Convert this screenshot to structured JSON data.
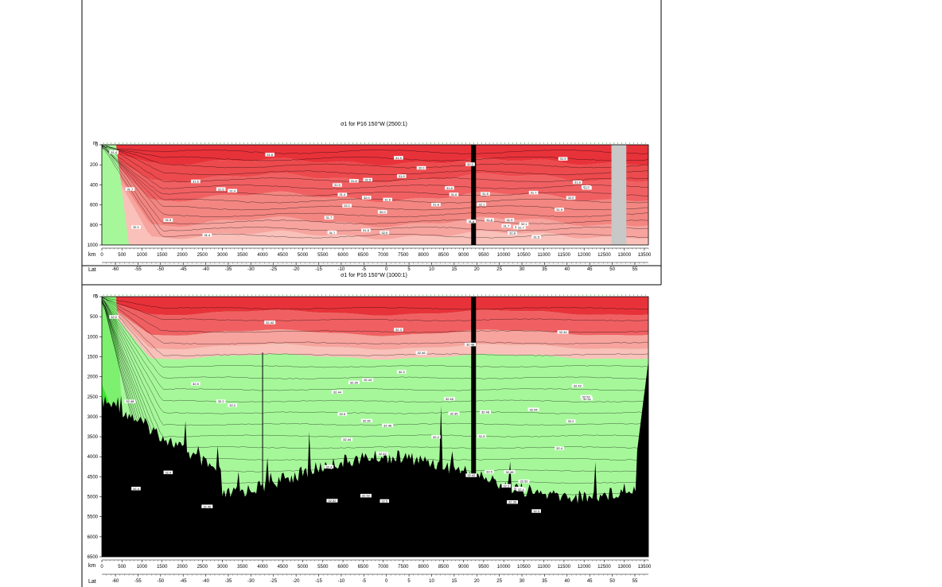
{
  "colors": {
    "red_deep": "#e8323a",
    "red_mid": "#f06062",
    "red_light": "#f7a39e",
    "pink": "#f9c1ba",
    "green_light": "#a6f79a",
    "green_mid": "#7ef070",
    "green_bright": "#3ee832",
    "bottom": "#000000",
    "no_data": "#c8c8c8"
  },
  "chart_data": [
    {
      "type": "heatmap",
      "panel": "upper",
      "title": "σ1 for P16 150°W (2500:1)",
      "ylabel": "m",
      "xlabel": "km",
      "x2label": "Lat",
      "ylim": [
        1000,
        0
      ],
      "xlim": [
        0,
        13600
      ],
      "yticks": [
        0,
        200,
        400,
        600,
        800,
        1000
      ],
      "xticks": [
        0,
        500,
        1000,
        1500,
        2000,
        2500,
        3000,
        3500,
        4000,
        4500,
        5000,
        5500,
        6000,
        6500,
        7000,
        7500,
        8000,
        8500,
        9000,
        9500,
        10000,
        10500,
        11000,
        11500,
        12000,
        12500,
        13000,
        13500
      ],
      "lat_ticks": [
        -60,
        -55,
        -50,
        -45,
        -40,
        -35,
        -30,
        -25,
        -20,
        -15,
        -10,
        -5,
        0,
        5,
        10,
        15,
        20,
        25,
        30,
        35,
        40,
        45,
        50,
        55
      ],
      "gap_km": [
        12680,
        13050
      ],
      "contour_labels": [
        "31.4",
        "31.5",
        "31.6",
        "31.7",
        "31.8",
        "31.9",
        "32.0",
        "32.1"
      ]
    },
    {
      "type": "heatmap",
      "panel": "lower",
      "title": "σ1 for P16 150°W (1000:1)",
      "ylabel": "m",
      "xlabel": "km",
      "x2label": "Lat",
      "ylim": [
        6500,
        0
      ],
      "xlim": [
        0,
        13600
      ],
      "yticks": [
        0,
        500,
        1000,
        1500,
        2000,
        2500,
        3000,
        3500,
        4000,
        4500,
        5000,
        5500,
        6000,
        6500
      ],
      "xticks": [
        0,
        500,
        1000,
        1500,
        2000,
        2500,
        3000,
        3500,
        4000,
        4500,
        5000,
        5500,
        6000,
        6500,
        7000,
        7500,
        8000,
        8500,
        9000,
        9500,
        10000,
        10500,
        11000,
        11500,
        12000,
        12500,
        13000,
        13500
      ],
      "lat_ticks": [
        -60,
        -55,
        -50,
        -45,
        -40,
        -35,
        -30,
        -25,
        -20,
        -15,
        -10,
        -5,
        0,
        5,
        10,
        15,
        20,
        25,
        30,
        35,
        40,
        45,
        50,
        55
      ],
      "contour_labels": [
        "32.2",
        "32.3",
        "32.35",
        "32.4",
        "32.42",
        "32.44",
        "32.46",
        "32.48",
        "32.5",
        "32.52"
      ]
    }
  ]
}
